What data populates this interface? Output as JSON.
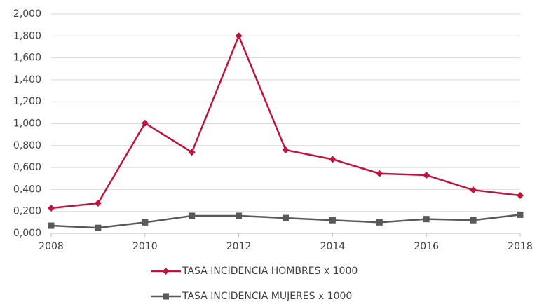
{
  "chart_data": {
    "type": "line",
    "x": [
      2008,
      2009,
      2010,
      2011,
      2012,
      2013,
      2014,
      2015,
      2016,
      2017,
      2018
    ],
    "series": [
      {
        "name": "TASA INCIDENCIA HOMBRES x 1000",
        "color": "#c0143c",
        "marker": "diamond",
        "values": [
          0.23,
          0.275,
          1.005,
          0.74,
          1.8,
          0.76,
          0.675,
          0.545,
          0.53,
          0.395,
          0.345
        ]
      },
      {
        "name": "TASA INCIDENCIA  MUJERES x 1000",
        "color": "#595959",
        "marker": "square",
        "values": [
          0.07,
          0.05,
          0.1,
          0.16,
          0.16,
          0.14,
          0.12,
          0.1,
          0.13,
          0.12,
          0.17
        ]
      }
    ],
    "xlim": [
      2008,
      2018
    ],
    "xticks": [
      2008,
      2010,
      2012,
      2014,
      2016,
      2018
    ],
    "ylim": [
      0,
      2
    ],
    "yticks": [
      {
        "value": 0,
        "label": "0,000"
      },
      {
        "value": 0.2,
        "label": "0,200"
      },
      {
        "value": 0.4,
        "label": "0,400"
      },
      {
        "value": 0.6,
        "label": "0,600"
      },
      {
        "value": 0.8,
        "label": "0,800"
      },
      {
        "value": 1,
        "label": "1,000"
      },
      {
        "value": 1.2,
        "label": "1,200"
      },
      {
        "value": 1.4,
        "label": "1,400"
      },
      {
        "value": 1.6,
        "label": "1,600"
      },
      {
        "value": 1.8,
        "label": "1,800"
      },
      {
        "value": 2,
        "label": "2,000"
      }
    ],
    "grid": true,
    "legend": "bottom"
  }
}
